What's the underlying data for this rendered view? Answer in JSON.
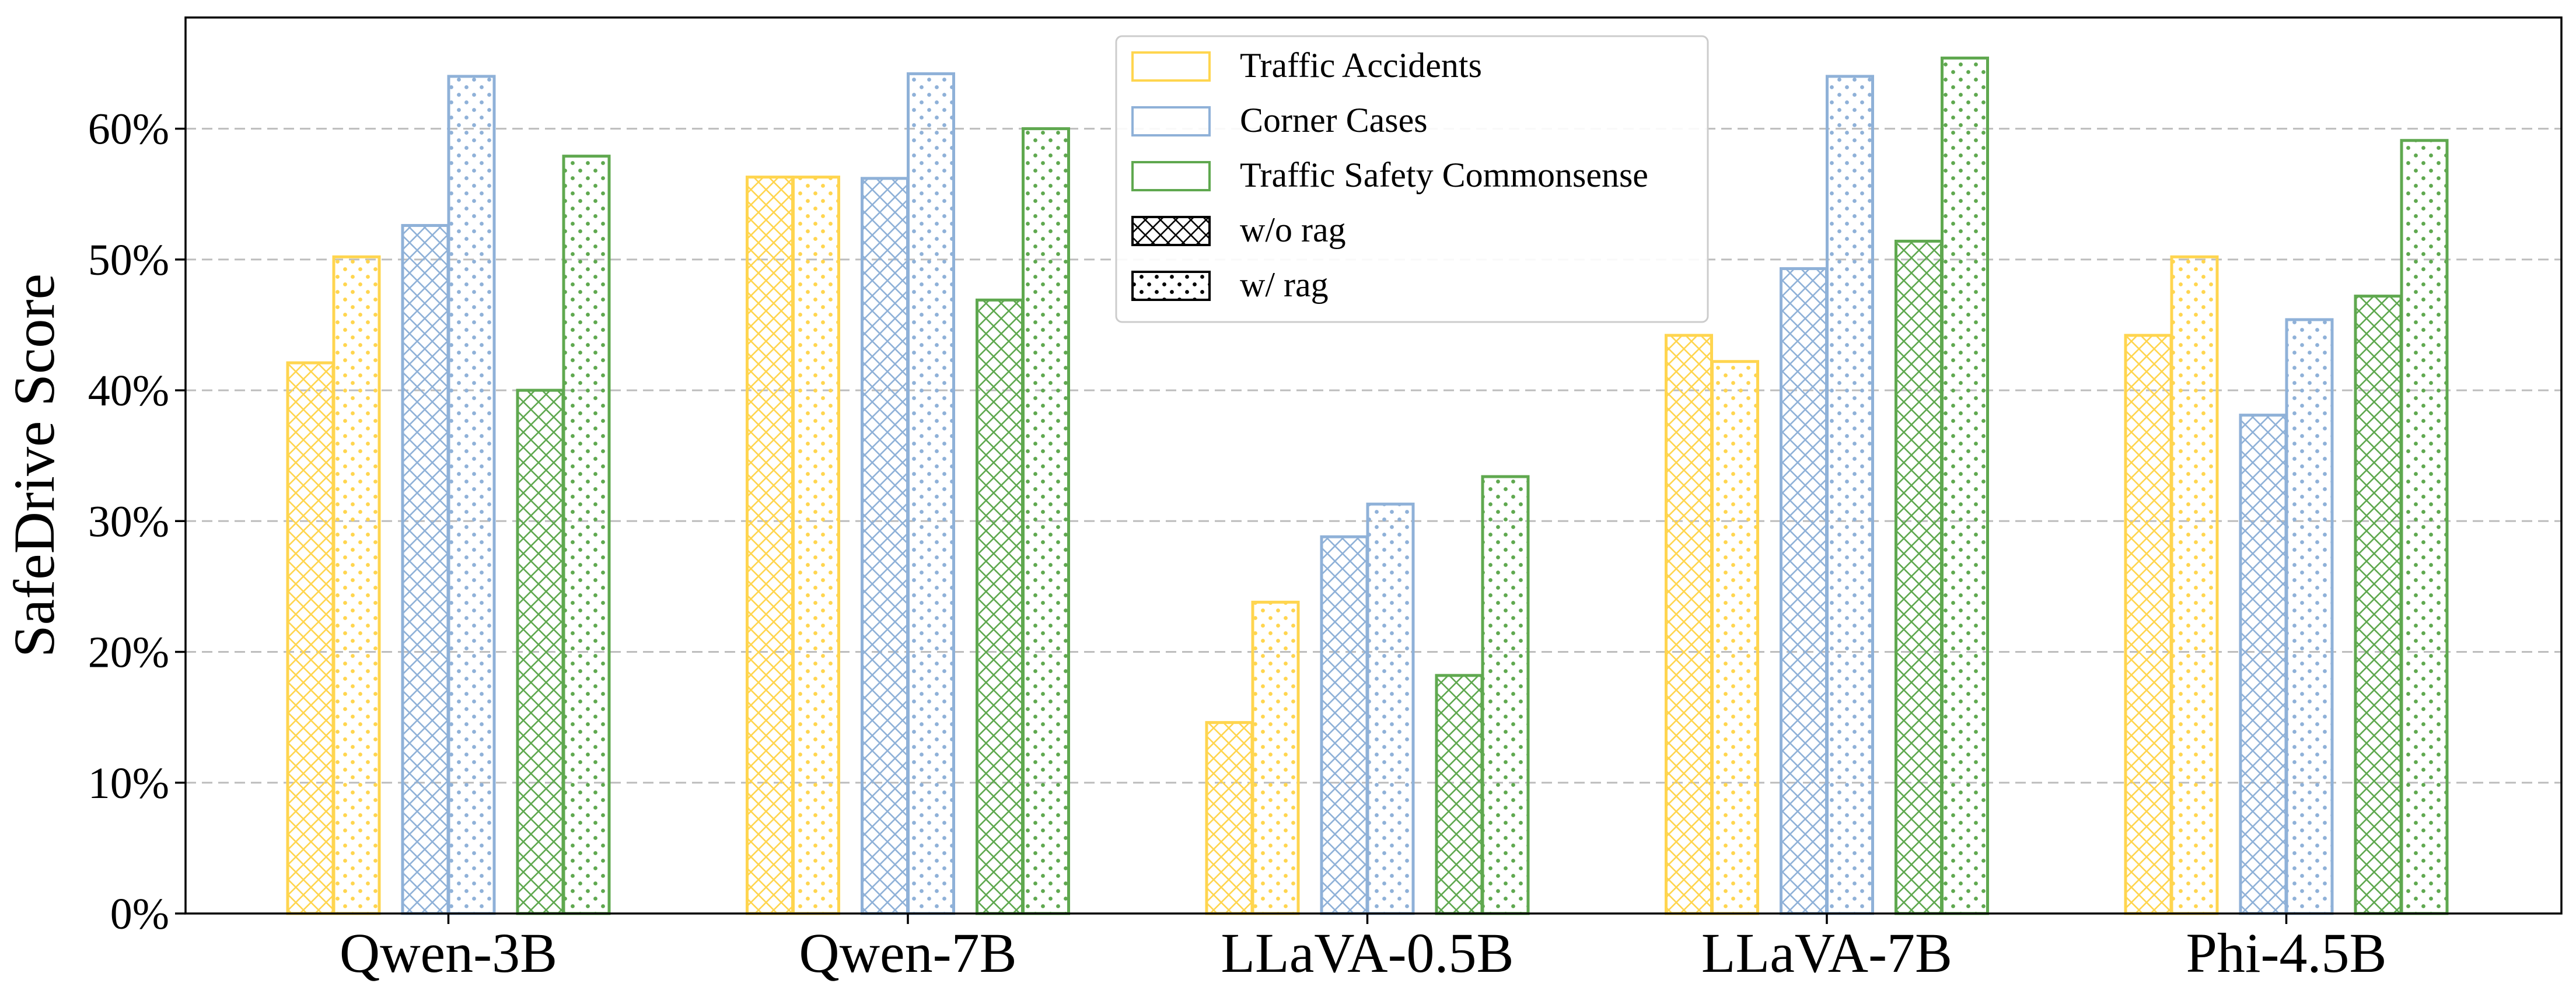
{
  "chart_data": {
    "type": "bar",
    "title": "",
    "xlabel": "",
    "ylabel": "SafeDrive Score",
    "categories": [
      "Qwen-3B",
      "Qwen-7B",
      "LLaVA-0.5B",
      "LLaVA-7B",
      "Phi-4.5B"
    ],
    "ylim": [
      0,
      68.5
    ],
    "yticks": [
      0,
      10,
      20,
      30,
      40,
      50,
      60
    ],
    "ytick_labels": [
      "0%",
      "10%",
      "20%",
      "30%",
      "40%",
      "50%",
      "60%"
    ],
    "grid": "y-dashed",
    "legend_position": "top-center",
    "series": [
      {
        "name": "Traffic Accidents",
        "variant": "w/o rag",
        "color": "#FFD54F",
        "values": [
          42.1,
          56.3,
          14.6,
          44.2,
          44.2
        ]
      },
      {
        "name": "Traffic Accidents",
        "variant": "w/ rag",
        "color": "#FFD54F",
        "values": [
          50.2,
          56.3,
          23.8,
          42.2,
          50.2
        ]
      },
      {
        "name": "Corner Cases",
        "variant": "w/o rag",
        "color": "#8FB1D8",
        "values": [
          52.6,
          56.2,
          28.8,
          49.3,
          38.1
        ]
      },
      {
        "name": "Corner Cases",
        "variant": "w/ rag",
        "color": "#8FB1D8",
        "values": [
          64.0,
          64.2,
          31.3,
          64.0,
          45.4
        ]
      },
      {
        "name": "Traffic Safety Commonsense",
        "variant": "w/o rag",
        "color": "#5FA84F",
        "values": [
          40.0,
          46.9,
          18.2,
          51.4,
          47.2
        ]
      },
      {
        "name": "Traffic Safety Commonsense",
        "variant": "w/ rag",
        "color": "#5FA84F",
        "values": [
          57.9,
          60.0,
          33.4,
          65.4,
          59.1
        ]
      }
    ],
    "legend": [
      {
        "label": "Traffic Accidents",
        "color": "#FFD54F",
        "pattern": "none"
      },
      {
        "label": "Corner Cases",
        "color": "#8FB1D8",
        "pattern": "none"
      },
      {
        "label": "Traffic Safety Commonsense",
        "color": "#5FA84F",
        "pattern": "none"
      },
      {
        "label": "w/o rag",
        "color": "#000000",
        "pattern": "crosshatch"
      },
      {
        "label": "w/ rag",
        "color": "#000000",
        "pattern": "dots"
      }
    ]
  }
}
